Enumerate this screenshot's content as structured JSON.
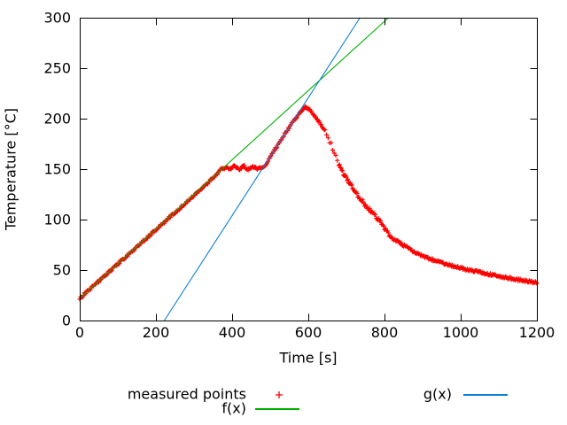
{
  "chart_data": {
    "type": "scatter",
    "title": "",
    "xlabel": "Time [s]",
    "ylabel": "Temperature [°C]",
    "xlim": [
      0,
      1200
    ],
    "ylim": [
      0,
      300
    ],
    "xticks": [
      0,
      200,
      400,
      600,
      800,
      1000,
      1200
    ],
    "yticks": [
      0,
      50,
      100,
      150,
      200,
      250,
      300
    ],
    "grid": false,
    "legend_position": "below-plot, two columns",
    "axis_color": "#000000",
    "series": [
      {
        "name": "measured points",
        "type": "points",
        "marker": "plus",
        "color": "#ff0000",
        "sample_interval_s": 2,
        "noise_amplitude_C": 1.2,
        "keypoints": [
          [
            0,
            22
          ],
          [
            25,
            30.5
          ],
          [
            50,
            39
          ],
          [
            75,
            47.5
          ],
          [
            100,
            56
          ],
          [
            125,
            64.5
          ],
          [
            150,
            73
          ],
          [
            175,
            81.5
          ],
          [
            200,
            90
          ],
          [
            225,
            98.5
          ],
          [
            250,
            107
          ],
          [
            275,
            115.5
          ],
          [
            300,
            124
          ],
          [
            325,
            132.5
          ],
          [
            350,
            141
          ],
          [
            362,
            146
          ],
          [
            372,
            150.5
          ],
          [
            385,
            151.5
          ],
          [
            395,
            149.5
          ],
          [
            406,
            153
          ],
          [
            418,
            149.5
          ],
          [
            430,
            153
          ],
          [
            443,
            149.5
          ],
          [
            455,
            152.5
          ],
          [
            467,
            150
          ],
          [
            476,
            151
          ],
          [
            484,
            152
          ],
          [
            500,
            162
          ],
          [
            520,
            174
          ],
          [
            540,
            186
          ],
          [
            558,
            196
          ],
          [
            572,
            203
          ],
          [
            583,
            208
          ],
          [
            592,
            211
          ],
          [
            600,
            210.5
          ],
          [
            610,
            206
          ],
          [
            622,
            200
          ],
          [
            634,
            194
          ],
          [
            646,
            187
          ],
          [
            654,
            180
          ],
          [
            662,
            172
          ],
          [
            671,
            162
          ],
          [
            681,
            153
          ],
          [
            694,
            144
          ],
          [
            708,
            136
          ],
          [
            722,
            128
          ],
          [
            736,
            121
          ],
          [
            750,
            114
          ],
          [
            762,
            109
          ],
          [
            772,
            105
          ],
          [
            782,
            101
          ],
          [
            790,
            97
          ],
          [
            800,
            91
          ],
          [
            810,
            86
          ],
          [
            822,
            81
          ],
          [
            835,
            78
          ],
          [
            848,
            75
          ],
          [
            865,
            71
          ],
          [
            882,
            67
          ],
          [
            900,
            64
          ],
          [
            920,
            61
          ],
          [
            940,
            58.5
          ],
          [
            962,
            56
          ],
          [
            985,
            53.5
          ],
          [
            1010,
            51
          ],
          [
            1035,
            49
          ],
          [
            1060,
            47
          ],
          [
            1090,
            44.5
          ],
          [
            1120,
            42.5
          ],
          [
            1150,
            40.5
          ],
          [
            1175,
            39
          ],
          [
            1200,
            37.5
          ]
        ]
      },
      {
        "name": "f(x)",
        "type": "line",
        "color": "#00b000",
        "linear": {
          "slope": 0.343,
          "intercept": 22
        }
      },
      {
        "name": "g(x)",
        "type": "line",
        "color": "#0a7fd6",
        "linear": {
          "slope": 0.584,
          "intercept": -129.65
        }
      }
    ]
  }
}
